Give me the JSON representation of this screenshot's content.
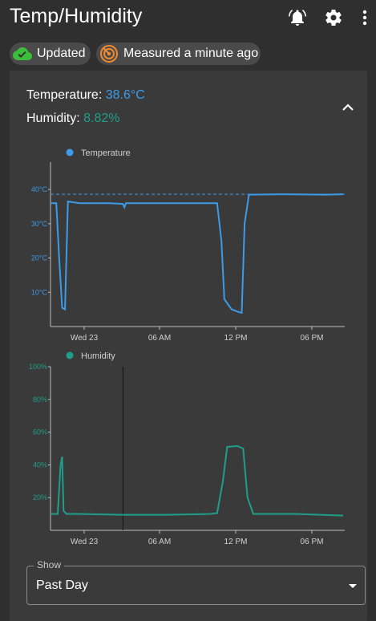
{
  "header": {
    "title": "Temp/Humidity",
    "icons": [
      "bell-icon",
      "gear-icon",
      "more-vert-icon"
    ]
  },
  "chips": {
    "updated": "Updated",
    "measured": "Measured a minute ago"
  },
  "readings": {
    "temperature_label": "Temperature:",
    "temperature_value": "38.6°C",
    "humidity_label": "Humidity:",
    "humidity_value": "8.82%"
  },
  "colors": {
    "temperature": "#3d9be9",
    "humidity": "#1f9e89",
    "background": "#2f2f2f",
    "panel": "#3a3a3a"
  },
  "chart_data": [
    {
      "type": "line",
      "series": [
        {
          "name": "Temperature",
          "x": [
            0.0,
            0.4,
            0.6,
            0.8,
            1.0,
            1.2,
            2.0,
            4.0,
            5.0,
            5.1,
            5.2,
            8.0,
            11.0,
            11.5,
            11.8,
            12.0,
            12.5,
            13.0,
            13.2,
            13.4,
            13.7,
            16.0,
            19.0,
            20.2
          ],
          "values": [
            36.0,
            36.0,
            20.0,
            5.5,
            5.0,
            36.5,
            36.0,
            36.0,
            35.8,
            34.8,
            36.0,
            36.0,
            36.0,
            36.0,
            25.0,
            8.0,
            5.0,
            4.2,
            4.0,
            30.0,
            38.5,
            38.6,
            38.5,
            38.6
          ]
        }
      ],
      "x_ticks": [
        "Wed 23",
        "06 AM",
        "12 PM",
        "06 PM"
      ],
      "y_ticks": [
        "10°C",
        "20°C",
        "30°C",
        "40°C"
      ],
      "ylim": [
        0,
        48
      ],
      "reference_line": 38.6,
      "legend": "top-left",
      "grid": false
    },
    {
      "type": "line",
      "series": [
        {
          "name": "Humidity",
          "x": [
            0.0,
            0.5,
            0.7,
            0.8,
            0.9,
            1.1,
            2.0,
            5.0,
            8.0,
            11.0,
            11.5,
            11.9,
            12.2,
            12.9,
            13.3,
            13.6,
            14.0,
            17.0,
            20.2
          ],
          "values": [
            10.0,
            10.0,
            40.0,
            45.0,
            12.0,
            10.0,
            10.0,
            9.5,
            9.5,
            10.0,
            10.5,
            30.0,
            51.0,
            51.5,
            50.0,
            20.0,
            10.0,
            10.0,
            9.0
          ]
        }
      ],
      "x_ticks": [
        "Wed 23",
        "06 AM",
        "12 PM",
        "06 PM"
      ],
      "y_ticks": [
        "20%",
        "40%",
        "60%",
        "80%",
        "100%"
      ],
      "ylim": [
        0,
        100
      ],
      "cursor_x": 5.0,
      "legend": "top-left",
      "grid": false
    }
  ],
  "select": {
    "label": "Show",
    "value": "Past Day"
  }
}
